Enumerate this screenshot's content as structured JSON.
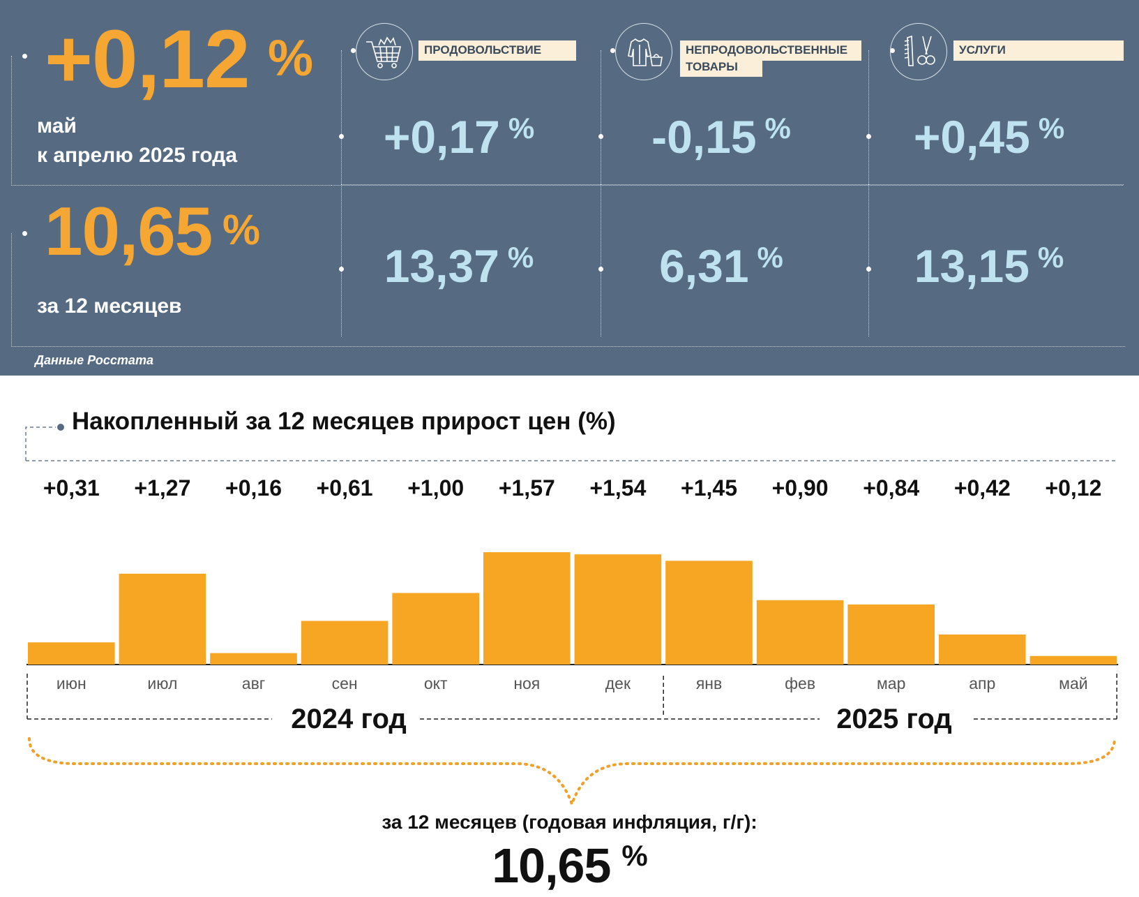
{
  "monthly_summary": {
    "value": "+0,12",
    "unit": "%",
    "line1": "май",
    "line2": "к апрелю 2025 года"
  },
  "annual_summary": {
    "value": "10,65",
    "unit": "%",
    "label": "за 12 месяцев"
  },
  "categories": [
    {
      "label": "ПРОДОВОЛЬСТВИЕ",
      "icon": "shopping-cart-icon",
      "monthly": "+0,17",
      "annual": "13,37",
      "unit": "%"
    },
    {
      "label": "НЕПРОДОВОЛЬСТВЕННЫЕ ТОВАРЫ",
      "label_line1": "НЕПРОДОВОЛЬСТВЕННЫЕ",
      "label_line2": "ТОВАРЫ",
      "icon": "clothing-bag-icon",
      "monthly": "-0,15",
      "annual": "6,31",
      "unit": "%"
    },
    {
      "label": "УСЛУГИ",
      "icon": "comb-scissors-icon",
      "monthly": "+0,45",
      "annual": "13,15",
      "unit": "%"
    }
  ],
  "source": "Данные Росстата",
  "colors": {
    "panel": "#566b82",
    "accent_orange": "#f6a632",
    "light_blue": "#bfe2f1",
    "bar": "#f6a623",
    "label_bg": "#fbefd9"
  },
  "chart_data": {
    "type": "bar",
    "title": "Накопленный за 12 месяцев прирост цен (%)",
    "categories": [
      "июн",
      "июл",
      "авг",
      "сен",
      "окт",
      "ноя",
      "дек",
      "янв",
      "фев",
      "мар",
      "апр",
      "май"
    ],
    "values": [
      0.31,
      1.27,
      0.16,
      0.61,
      1.0,
      1.57,
      1.54,
      1.45,
      0.9,
      0.84,
      0.42,
      0.12
    ],
    "value_labels": [
      "+0,31",
      "+1,27",
      "+0,16",
      "+0,61",
      "+1,00",
      "+1,57",
      "+1,54",
      "+1,45",
      "+0,90",
      "+0,84",
      "+0,42",
      "+0,12"
    ],
    "year_groups": [
      {
        "label": "2024 год",
        "months": 7
      },
      {
        "label": "2025 год",
        "months": 5
      }
    ],
    "ylim": [
      0,
      1.6
    ],
    "grid": false
  },
  "annual_footer": {
    "caption": "за 12 месяцев (годовая инфляция, г/г):",
    "value": "10,65",
    "unit": "%"
  }
}
